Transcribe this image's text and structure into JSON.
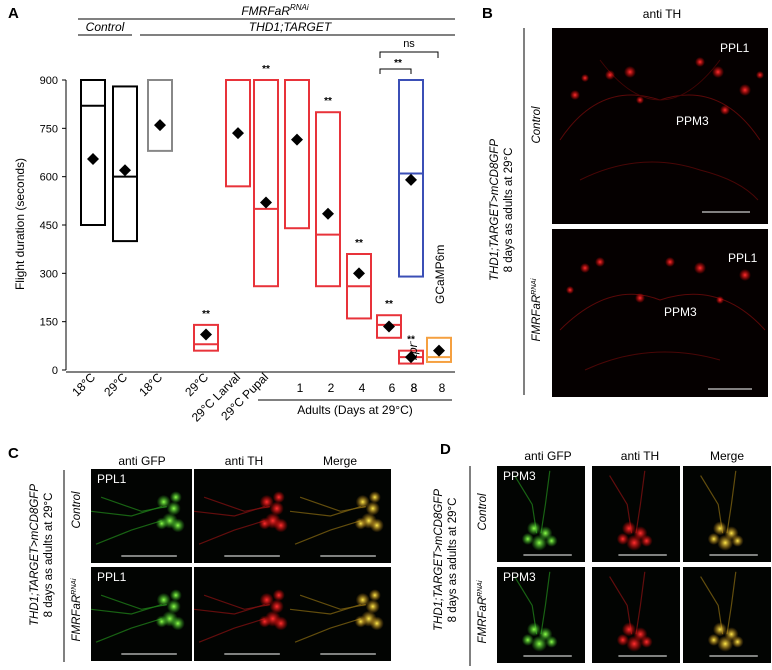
{
  "panel_labels": {
    "a": "A",
    "b": "B",
    "c": "C",
    "d": "D"
  },
  "panel_a": {
    "header_top": "FMRFaR",
    "header_top_sup": "RNAi",
    "header_control": "Control",
    "header_thd": "THD1;TARGET",
    "ns_label": "ns",
    "sig_label": "**",
    "x_group_label": "Adults (Days at 29°C)",
    "gcamp_label": "GCaMP6m",
    "itpr_label": "itpr",
    "itpr_sup": "-",
    "chart_data": {
      "type": "box",
      "ylabel": "Flight duration (seconds)",
      "ylim": [
        0,
        900
      ],
      "yticks": [
        0,
        150,
        300,
        450,
        600,
        750,
        900
      ],
      "categories": [
        "18°C",
        "29°C",
        "18°C",
        "29°C",
        "29°C Larval",
        "29°C Pupal",
        "1",
        "2",
        "4",
        "6",
        "8",
        "8",
        "8"
      ],
      "series": [
        {
          "color": "#000000",
          "q1": 450,
          "median": 820,
          "q3": 900,
          "mean": 655,
          "sig": ""
        },
        {
          "color": "#000000",
          "q1": 400,
          "median": 600,
          "q3": 880,
          "mean": 620,
          "sig": ""
        },
        {
          "color": "#888888",
          "q1": 680,
          "median": 900,
          "q3": 900,
          "mean": 760,
          "sig": ""
        },
        {
          "color": "#e8333a",
          "q1": 60,
          "median": 80,
          "q3": 140,
          "mean": 110,
          "sig": "**"
        },
        {
          "color": "#e8333a",
          "q1": 570,
          "median": 900,
          "q3": 900,
          "mean": 735,
          "sig": ""
        },
        {
          "color": "#e8333a",
          "q1": 260,
          "median": 500,
          "q3": 900,
          "mean": 520,
          "sig": "**"
        },
        {
          "color": "#e8333a",
          "q1": 440,
          "median": 900,
          "q3": 900,
          "mean": 715,
          "sig": ""
        },
        {
          "color": "#e8333a",
          "q1": 260,
          "median": 420,
          "q3": 800,
          "mean": 485,
          "sig": "**"
        },
        {
          "color": "#e8333a",
          "q1": 160,
          "median": 260,
          "q3": 360,
          "mean": 300,
          "sig": "**"
        },
        {
          "color": "#e8333a",
          "q1": 100,
          "median": 140,
          "q3": 170,
          "mean": 135,
          "sig": "**"
        },
        {
          "color": "#e8333a",
          "q1": 20,
          "median": 40,
          "q3": 60,
          "mean": 40,
          "sig": "**"
        },
        {
          "color": "#3b4fb6",
          "q1": 290,
          "median": 610,
          "q3": 900,
          "mean": 590,
          "sig": ""
        },
        {
          "color": "#f5a040",
          "q1": 25,
          "median": 40,
          "q3": 100,
          "mean": 60,
          "sig": ""
        }
      ]
    }
  },
  "panel_b": {
    "title": "anti TH",
    "row_control": "Control",
    "row_rnai": "FMRFaR",
    "row_rnai_sup": "RNAi",
    "ppl1": "PPL1",
    "ppm3": "PPM3",
    "genotype": "THD1;TARGET>mCD8GFP",
    "condition": "8 days as adults at 29°C"
  },
  "panel_c": {
    "col_titles": [
      "anti GFP",
      "anti TH",
      "Merge"
    ],
    "cluster_label": "PPL1",
    "row_control": "Control",
    "row_rnai": "FMRFaR",
    "row_rnai_sup": "RNAi",
    "genotype": "THD1;TARGET>mCD8GFP",
    "condition": "8 days as adults at 29°C"
  },
  "panel_d": {
    "col_titles": [
      "anti GFP",
      "anti TH",
      "Merge"
    ],
    "cluster_label": "PPM3",
    "row_control": "Control",
    "row_rnai": "FMRFaR",
    "row_rnai_sup": "RNAi",
    "genotype": "THD1;TARGET>mCD8GFP",
    "condition": "8 days as adults at 29°C"
  },
  "colors": {
    "red": "#e8333a",
    "blue": "#3b4fb6",
    "orange": "#f5a040",
    "grey": "#888888",
    "black": "#000000"
  }
}
